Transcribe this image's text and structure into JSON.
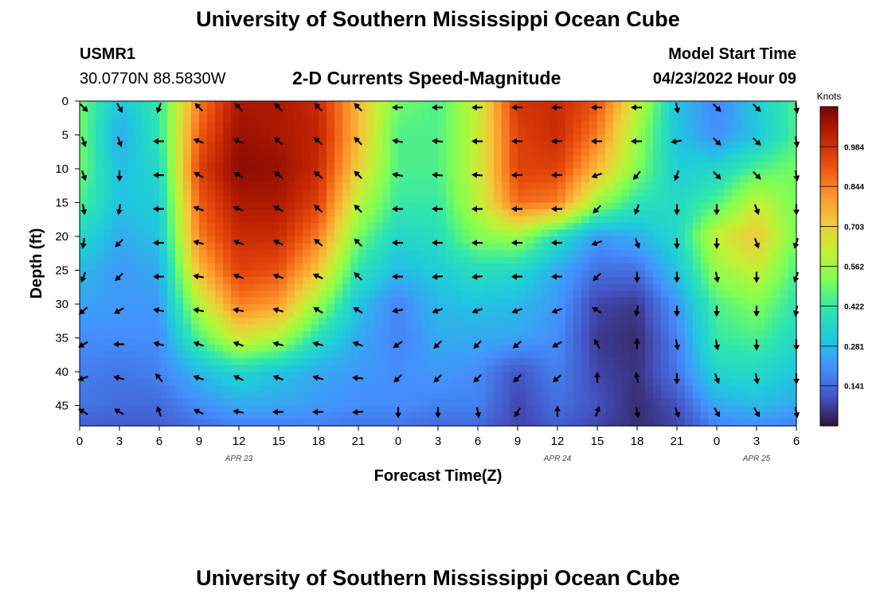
{
  "header": {
    "title": "University of Southern Mississippi Ocean Cube",
    "station_id": "USMR1",
    "coords": "30.0770N  88.5830W",
    "chart_subtitle": "2-D Currents Speed-Magnitude",
    "model_start_label": "Model Start Time",
    "model_start_value": "04/23/2022 Hour 09"
  },
  "footer": {
    "title": "University of Southern Mississippi Ocean Cube"
  },
  "colors": {
    "palette": [
      "#30123b",
      "#4454c4",
      "#4490fe",
      "#1fc9dd",
      "#2ee5ae",
      "#7eff55",
      "#c3f134",
      "#f1ca3a",
      "#fe922a",
      "#ea4f0d",
      "#be2102",
      "#7a0403"
    ]
  },
  "chart_data": {
    "type": "heatmap",
    "title": "2-D Currents Speed-Magnitude",
    "xlabel": "Forecast Time(Z)",
    "ylabel": "Depth (ft)",
    "x_ticks": [
      0,
      3,
      6,
      9,
      12,
      15,
      18,
      21,
      24,
      27,
      30,
      33,
      36,
      39,
      42,
      45,
      48,
      51,
      54
    ],
    "x_tick_labels": [
      "0",
      "3",
      "6",
      "9",
      "12",
      "15",
      "18",
      "21",
      "0",
      "3",
      "6",
      "9",
      "12",
      "15",
      "18",
      "21",
      "0",
      "3",
      "6"
    ],
    "x_range": [
      0,
      54
    ],
    "date_labels": [
      {
        "hour": 12,
        "label": "APR 23"
      },
      {
        "hour": 36,
        "label": "APR 24"
      },
      {
        "hour": 51,
        "label": "APR 25"
      }
    ],
    "y_ticks": [
      0,
      5,
      10,
      15,
      20,
      25,
      30,
      35,
      40,
      45
    ],
    "y_range": [
      0,
      48
    ],
    "colorbar": {
      "label": "Knots",
      "min": 0.0,
      "max": 1.125,
      "ticks": [
        0.141,
        0.281,
        0.422,
        0.562,
        0.703,
        0.844,
        0.984
      ]
    },
    "x_nodes": [
      0,
      3,
      6,
      9,
      12,
      15,
      18,
      21,
      24,
      27,
      30,
      33,
      36,
      39,
      42,
      45,
      48,
      51,
      54
    ],
    "depth_nodes": [
      0,
      5,
      10,
      15,
      20,
      25,
      30,
      35,
      40,
      45,
      48
    ],
    "speed_knots": [
      [
        0.5,
        0.3,
        0.42,
        0.85,
        1.05,
        1.05,
        1.0,
        0.75,
        0.5,
        0.45,
        0.62,
        0.98,
        1.0,
        0.92,
        0.62,
        0.3,
        0.18,
        0.32,
        0.45
      ],
      [
        0.5,
        0.25,
        0.4,
        0.9,
        1.08,
        1.05,
        1.02,
        0.75,
        0.45,
        0.45,
        0.62,
        0.95,
        1.0,
        0.85,
        0.55,
        0.3,
        0.2,
        0.3,
        0.45
      ],
      [
        0.5,
        0.28,
        0.36,
        0.95,
        1.1,
        1.08,
        1.0,
        0.7,
        0.45,
        0.45,
        0.62,
        0.95,
        0.95,
        0.75,
        0.52,
        0.32,
        0.35,
        0.45,
        0.5
      ],
      [
        0.45,
        0.3,
        0.32,
        0.9,
        1.05,
        1.05,
        0.95,
        0.6,
        0.42,
        0.42,
        0.6,
        0.88,
        0.85,
        0.55,
        0.4,
        0.36,
        0.45,
        0.62,
        0.5
      ],
      [
        0.36,
        0.25,
        0.3,
        0.85,
        1.0,
        1.0,
        0.85,
        0.5,
        0.35,
        0.38,
        0.52,
        0.56,
        0.38,
        0.22,
        0.26,
        0.36,
        0.62,
        0.72,
        0.5
      ],
      [
        0.28,
        0.22,
        0.25,
        0.75,
        0.95,
        0.92,
        0.72,
        0.4,
        0.28,
        0.32,
        0.38,
        0.36,
        0.25,
        0.15,
        0.15,
        0.3,
        0.55,
        0.62,
        0.45
      ],
      [
        0.24,
        0.22,
        0.22,
        0.6,
        0.85,
        0.8,
        0.55,
        0.3,
        0.18,
        0.28,
        0.3,
        0.28,
        0.22,
        0.08,
        0.06,
        0.22,
        0.45,
        0.52,
        0.4
      ],
      [
        0.2,
        0.2,
        0.2,
        0.45,
        0.65,
        0.58,
        0.38,
        0.25,
        0.18,
        0.25,
        0.25,
        0.24,
        0.2,
        0.06,
        0.04,
        0.18,
        0.42,
        0.45,
        0.36
      ],
      [
        0.18,
        0.16,
        0.18,
        0.28,
        0.35,
        0.3,
        0.25,
        0.22,
        0.2,
        0.22,
        0.2,
        0.1,
        0.18,
        0.08,
        0.05,
        0.16,
        0.35,
        0.36,
        0.3
      ],
      [
        0.16,
        0.14,
        0.14,
        0.2,
        0.25,
        0.24,
        0.22,
        0.2,
        0.2,
        0.18,
        0.18,
        0.08,
        0.15,
        0.1,
        0.04,
        0.1,
        0.25,
        0.28,
        0.25
      ],
      [
        0.12,
        0.12,
        0.12,
        0.15,
        0.18,
        0.18,
        0.18,
        0.16,
        0.16,
        0.14,
        0.14,
        0.08,
        0.12,
        0.08,
        0.04,
        0.08,
        0.18,
        0.2,
        0.18
      ]
    ],
    "arrow_x_hours": [
      0.3,
      3,
      6,
      9,
      12,
      15,
      18,
      21,
      24,
      27,
      30,
      33,
      36,
      39,
      42,
      45,
      48,
      51,
      54
    ],
    "arrow_depths": [
      0,
      5,
      10,
      15,
      20,
      25,
      30,
      35,
      40,
      45
    ],
    "arrow_direction_deg": [
      [
        135,
        150,
        200,
        315,
        315,
        315,
        315,
        315,
        270,
        270,
        270,
        270,
        270,
        270,
        270,
        170,
        135,
        135,
        170
      ],
      [
        160,
        160,
        270,
        290,
        290,
        310,
        310,
        315,
        280,
        275,
        270,
        270,
        270,
        270,
        270,
        260,
        135,
        135,
        170
      ],
      [
        160,
        180,
        270,
        300,
        300,
        310,
        310,
        315,
        280,
        275,
        275,
        270,
        270,
        250,
        220,
        200,
        135,
        135,
        170
      ],
      [
        170,
        190,
        270,
        290,
        290,
        300,
        310,
        315,
        270,
        270,
        270,
        270,
        270,
        225,
        200,
        180,
        180,
        160,
        180
      ],
      [
        190,
        225,
        270,
        285,
        290,
        295,
        310,
        315,
        270,
        270,
        270,
        270,
        270,
        250,
        160,
        180,
        180,
        160,
        200
      ],
      [
        200,
        225,
        270,
        280,
        290,
        290,
        295,
        315,
        270,
        265,
        265,
        270,
        270,
        225,
        180,
        180,
        170,
        180,
        200
      ],
      [
        230,
        240,
        280,
        280,
        280,
        285,
        300,
        300,
        260,
        250,
        250,
        250,
        250,
        300,
        190,
        180,
        180,
        180,
        190
      ],
      [
        240,
        270,
        285,
        290,
        290,
        285,
        285,
        290,
        235,
        225,
        225,
        230,
        240,
        330,
        0,
        170,
        170,
        180,
        180
      ],
      [
        250,
        285,
        320,
        290,
        295,
        290,
        285,
        275,
        225,
        225,
        225,
        225,
        230,
        0,
        350,
        180,
        160,
        170,
        180
      ],
      [
        300,
        300,
        340,
        295,
        280,
        270,
        270,
        265,
        180,
        180,
        170,
        210,
        0,
        20,
        170,
        160,
        150,
        150,
        170
      ]
    ]
  }
}
